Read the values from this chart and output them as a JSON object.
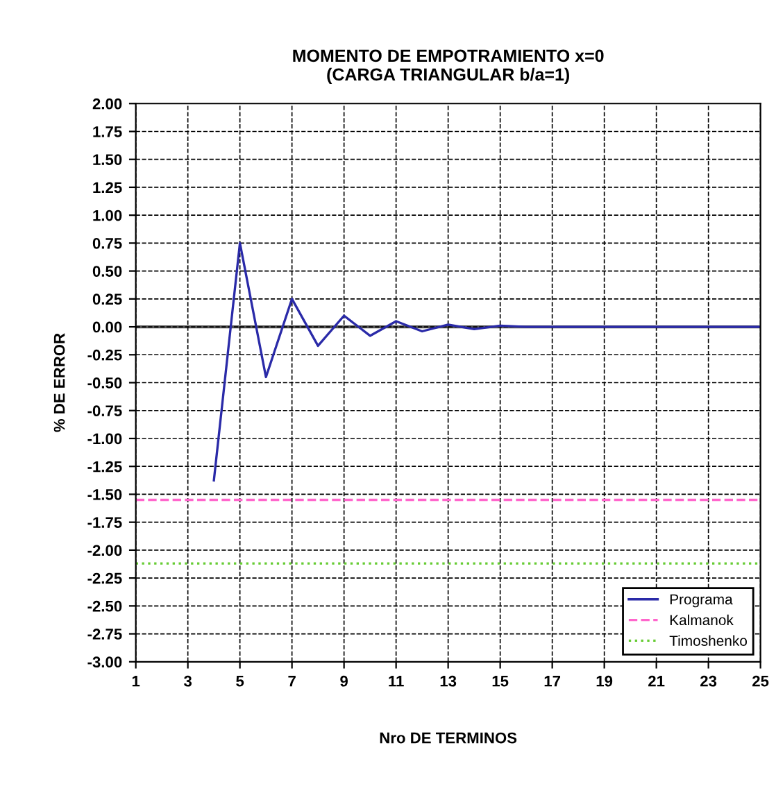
{
  "chart_data": {
    "type": "line",
    "title": "MOMENTO DE EMPOTRAMIENTO x=0\n(CARGA TRIANGULAR b/a=1)",
    "xlabel": "Nro DE TERMINOS",
    "ylabel": "% DE ERROR",
    "series": [
      {
        "name": "Programa",
        "color": "#2a2aa8",
        "x": [
          4,
          5,
          6,
          7,
          8,
          9,
          10,
          11,
          12,
          13,
          14,
          15,
          16,
          17,
          18,
          19,
          20,
          21,
          22,
          23,
          24,
          25
        ],
        "values": [
          -1.375,
          0.75,
          -0.45,
          0.25,
          -0.17,
          0.1,
          -0.08,
          0.05,
          -0.04,
          0.02,
          -0.02,
          0.01,
          0,
          0,
          0,
          0,
          0,
          0,
          0,
          0,
          0,
          0
        ]
      },
      {
        "name": "Kalmanok",
        "color": "#ff66cc",
        "line_style": "dashed",
        "x": [
          1,
          25
        ],
        "values": [
          -1.55,
          -1.55
        ]
      },
      {
        "name": "Timoshenko",
        "color": "#66cc33",
        "line_style": "dotted",
        "x": [
          1,
          25
        ],
        "values": [
          -2.12,
          -2.12
        ]
      }
    ],
    "xlim": [
      1,
      25
    ],
    "xticks": [
      1,
      3,
      5,
      7,
      9,
      11,
      13,
      15,
      17,
      19,
      21,
      23,
      25
    ],
    "ylim": [
      -3,
      2
    ],
    "yticks": [
      {
        "value": 2,
        "label": "2.00"
      },
      {
        "value": 1.75,
        "label": "1.75"
      },
      {
        "value": 1.5,
        "label": "1.50"
      },
      {
        "value": 1.25,
        "label": "1.25"
      },
      {
        "value": 1,
        "label": "1.00"
      },
      {
        "value": 0.75,
        "label": "0.75"
      },
      {
        "value": 0.5,
        "label": "0.50"
      },
      {
        "value": 0.25,
        "label": "0.25"
      },
      {
        "value": 0,
        "label": "0.00"
      },
      {
        "value": -0.25,
        "label": "-0.25"
      },
      {
        "value": -0.5,
        "label": "-0.50"
      },
      {
        "value": -0.75,
        "label": "-0.75"
      },
      {
        "value": -1,
        "label": "-1.00"
      },
      {
        "value": -1.25,
        "label": "-1.25"
      },
      {
        "value": -1.5,
        "label": "-1.50"
      },
      {
        "value": -1.75,
        "label": "-1.75"
      },
      {
        "value": -2,
        "label": "-2.00"
      },
      {
        "value": -2.25,
        "label": "-2.25"
      },
      {
        "value": -2.5,
        "label": "-2.50"
      },
      {
        "value": -2.75,
        "label": "-2.75"
      },
      {
        "value": -3,
        "label": "-3.00"
      }
    ],
    "ref_lines": [
      {
        "axis": "y",
        "value": 0,
        "color": "#555555"
      }
    ],
    "grid": true,
    "legend": "bottom right"
  }
}
